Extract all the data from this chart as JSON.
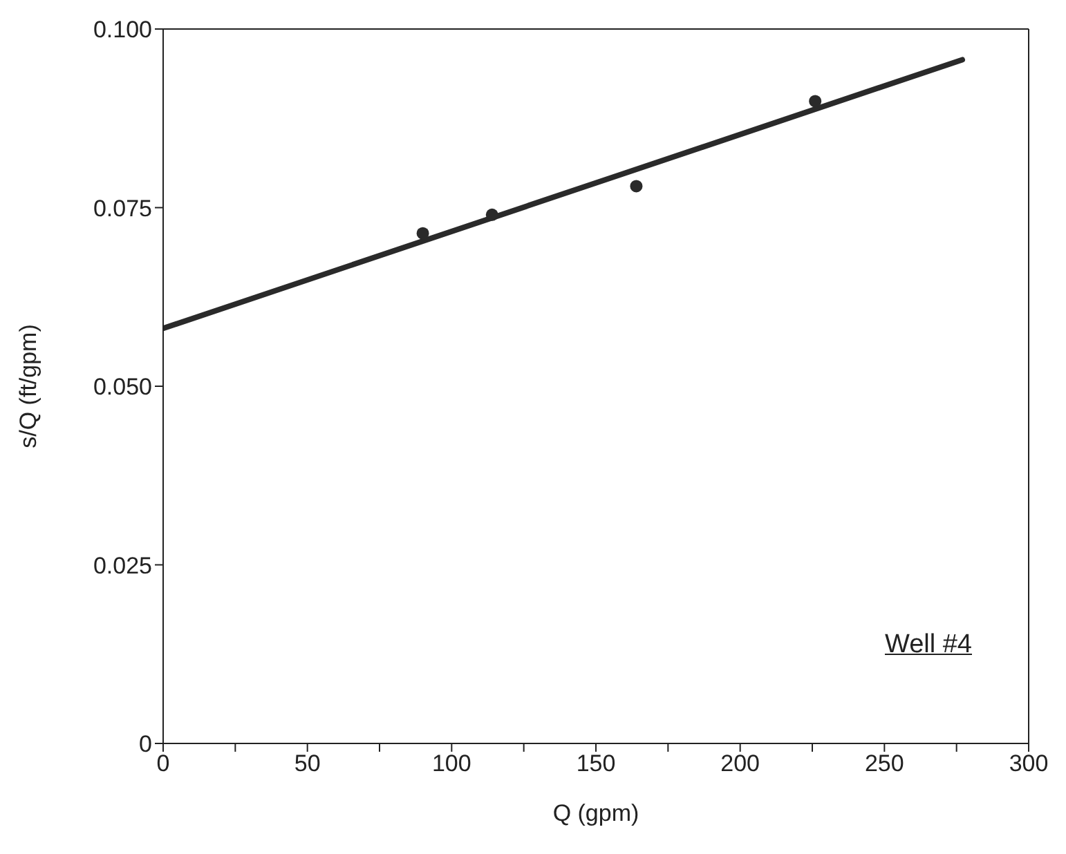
{
  "chart_data": {
    "type": "scatter",
    "xlabel": "Q (gpm)",
    "ylabel": "s/Q (ft/gpm)",
    "annotations": [
      "Well #4"
    ],
    "xlim": [
      0,
      300
    ],
    "xticks": [
      0,
      {
        "value": 25,
        "label": null
      },
      50,
      {
        "value": 75,
        "label": null
      },
      100,
      {
        "value": 125,
        "label": null
      },
      150,
      {
        "value": 175,
        "label": null
      },
      200,
      {
        "value": 225,
        "label": null
      },
      250,
      {
        "value": 275,
        "label": null
      },
      300
    ],
    "ylim": [
      0,
      0.1
    ],
    "yticks": [
      0,
      0.025,
      {
        "value": 0.05,
        "label": "0.050"
      },
      0.075,
      {
        "value": 0.1,
        "label": "0.100"
      }
    ],
    "grid": false,
    "legend": false,
    "marker": "circle",
    "series": [
      {
        "color": "#2a2a2a",
        "x": [
          90,
          114,
          164,
          226
        ],
        "values": [
          0.0714,
          0.074,
          0.078,
          0.0899
        ]
      },
      {
        "type": "line",
        "color": "#2a2a2a",
        "line_style": "solid",
        "marker": "none",
        "x": [
          0,
          277
        ],
        "values": [
          0.0581,
          0.0957
        ]
      }
    ]
  }
}
